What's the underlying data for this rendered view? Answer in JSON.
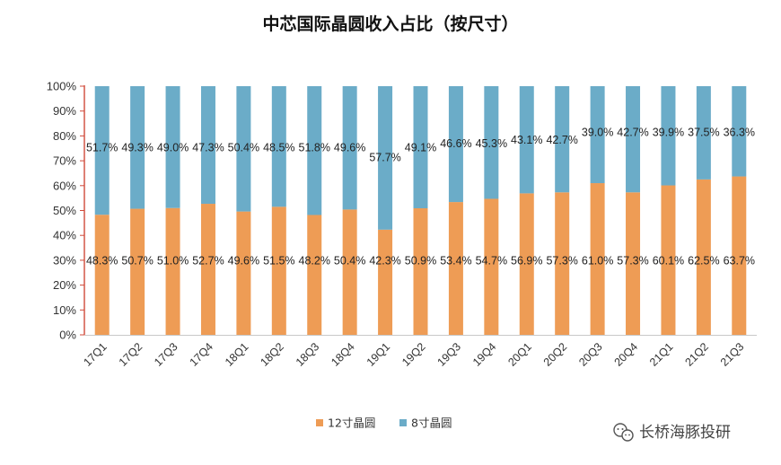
{
  "chart_data": {
    "type": "bar",
    "stacked": true,
    "title": "中芯国际晶圆收入占比（按尺寸）",
    "categories": [
      "17Q1",
      "17Q2",
      "17Q3",
      "17Q4",
      "18Q1",
      "18Q2",
      "18Q3",
      "18Q4",
      "19Q1",
      "19Q2",
      "19Q3",
      "19Q4",
      "20Q1",
      "20Q2",
      "20Q3",
      "20Q4",
      "21Q1",
      "21Q2",
      "21Q3"
    ],
    "series": [
      {
        "name": "12寸晶圆",
        "color": "#EE9C55",
        "values": [
          48.3,
          50.7,
          51.0,
          52.7,
          49.6,
          51.5,
          48.2,
          50.4,
          42.3,
          50.9,
          53.4,
          54.7,
          56.9,
          57.3,
          61.0,
          57.3,
          60.1,
          62.5,
          63.7
        ],
        "labels": [
          "48.3%",
          "50.7%",
          "51.0%",
          "52.7%",
          "49.6%",
          "51.5%",
          "48.2%",
          "50.4%",
          "42.3%",
          "50.9%",
          "53.4%",
          "54.7%",
          "56.9%",
          "57.3%",
          "61.0%",
          "57.3%",
          "60.1%",
          "62.5%",
          "63.7%"
        ]
      },
      {
        "name": "8寸晶圆",
        "color": "#6BACC8",
        "values": [
          51.7,
          49.3,
          49.0,
          47.3,
          50.4,
          48.5,
          51.8,
          49.6,
          57.7,
          49.1,
          46.6,
          45.3,
          43.1,
          42.7,
          39.0,
          42.7,
          39.9,
          37.5,
          36.3
        ],
        "labels": [
          "51.7%",
          "49.3%",
          "49.0%",
          "47.3%",
          "50.4%",
          "48.5%",
          "51.8%",
          "49.6%",
          "57.7%",
          "49.1%",
          "46.6%",
          "45.3%",
          "43.1%",
          "42.7%",
          "39.0%",
          "42.7%",
          "39.9%",
          "37.5%",
          "36.3%"
        ]
      }
    ],
    "ylim": [
      0,
      100
    ],
    "yticks": [
      "0%",
      "10%",
      "20%",
      "30%",
      "40%",
      "50%",
      "60%",
      "70%",
      "80%",
      "90%",
      "100%"
    ],
    "xlabel": "",
    "ylabel": "",
    "legend_position": "bottom-center",
    "grid": false
  },
  "watermark": {
    "icon": "wechat-icon",
    "text": "长桥海豚投研"
  }
}
